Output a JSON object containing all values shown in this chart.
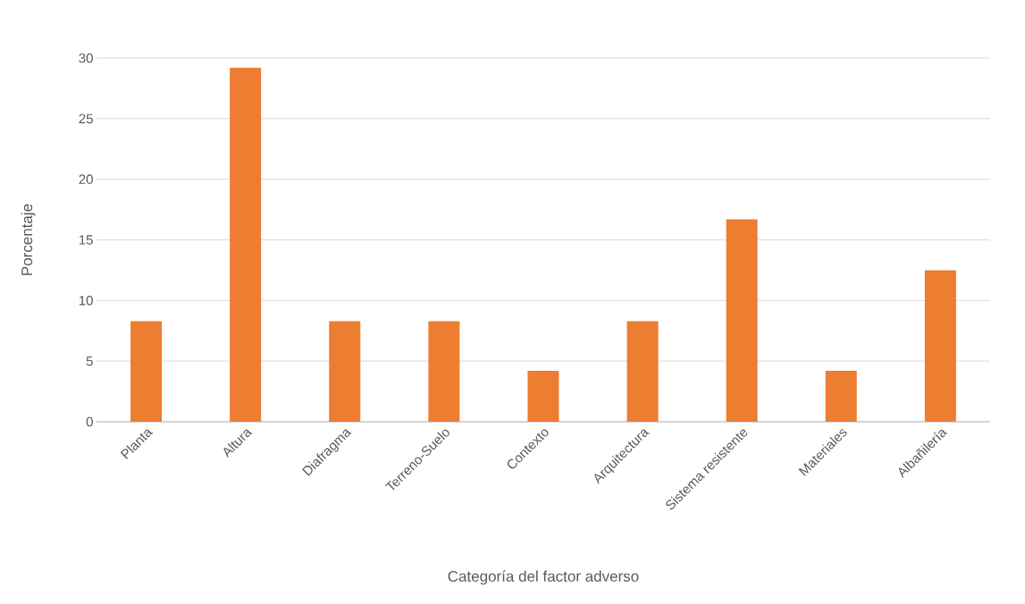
{
  "chart_data": {
    "type": "bar",
    "xlabel": "Categoría del factor adverso",
    "ylabel": "Porcentaje",
    "categories": [
      "Planta",
      "Altura",
      "Diafragma",
      "Terreno-Suelo",
      "Contexto",
      "Arquitectura",
      "Sistema resistente",
      "Materiales",
      "Albañilería"
    ],
    "values": [
      8.3,
      29.2,
      8.3,
      8.3,
      4.2,
      8.3,
      16.7,
      4.2,
      12.5
    ],
    "color": "#ed7d31",
    "ylim": [
      0,
      30
    ],
    "yticks": [
      0,
      5,
      10,
      15,
      20,
      25,
      30
    ],
    "grid": "y"
  }
}
